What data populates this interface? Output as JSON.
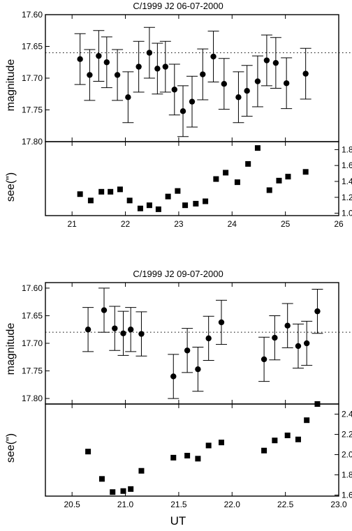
{
  "chart_data": [
    {
      "type": "scatter",
      "title": "C/1999 J2  06-07-2000",
      "ylabel": "magnitude",
      "ylim": [
        17.6,
        17.8
      ],
      "y_inverted": true,
      "yticks": [
        "17.60",
        "17.65",
        "17.70",
        "17.75",
        "17.80"
      ],
      "reference_line": 17.66,
      "series": [
        {
          "x": [
            21.15,
            21.33,
            21.5,
            21.65,
            21.85,
            22.05,
            22.25,
            22.45,
            22.6,
            22.75,
            22.92,
            23.08,
            23.25,
            23.45,
            23.65,
            23.85,
            24.12,
            24.28,
            24.48,
            24.65,
            24.82,
            25.02,
            25.38
          ],
          "y": [
            17.67,
            17.695,
            17.665,
            17.675,
            17.695,
            17.73,
            17.682,
            17.66,
            17.685,
            17.682,
            17.718,
            17.752,
            17.737,
            17.694,
            17.666,
            17.709,
            17.73,
            17.72,
            17.705,
            17.672,
            17.676,
            17.708,
            17.693
          ],
          "yerr": [
            0.04,
            0.04,
            0.04,
            0.04,
            0.04,
            0.04,
            0.04,
            0.04,
            0.04,
            0.04,
            0.04,
            0.04,
            0.04,
            0.04,
            0.04,
            0.04,
            0.04,
            0.04,
            0.04,
            0.04,
            0.04,
            0.04,
            0.04
          ]
        }
      ]
    },
    {
      "type": "scatter",
      "ylabel": "see(\")",
      "xlim": [
        20.5,
        26
      ],
      "xticks": [
        "21",
        "22",
        "23",
        "24",
        "25",
        "26"
      ],
      "ylim": [
        0.97,
        1.9
      ],
      "yticks": [
        "1.0",
        "1.2",
        "1.4",
        "1.6",
        "1.8"
      ],
      "series": [
        {
          "x": [
            21.15,
            21.35,
            21.55,
            21.72,
            21.9,
            22.08,
            22.28,
            22.45,
            22.62,
            22.8,
            22.98,
            23.12,
            23.32,
            23.5,
            23.7,
            23.88,
            24.1,
            24.3,
            24.48,
            24.7,
            24.88,
            25.05,
            25.38
          ],
          "y": [
            1.24,
            1.16,
            1.27,
            1.27,
            1.3,
            1.16,
            1.06,
            1.1,
            1.05,
            1.21,
            1.28,
            1.1,
            1.12,
            1.15,
            1.43,
            1.51,
            1.39,
            1.62,
            1.82,
            1.29,
            1.41,
            1.46,
            1.52
          ]
        }
      ]
    },
    {
      "type": "scatter",
      "title": "C/1999 J2  09-07-2000",
      "ylabel": "magnitude",
      "ylim": [
        17.59,
        17.81
      ],
      "y_inverted": true,
      "yticks": [
        "17.60",
        "17.65",
        "17.70",
        "17.75",
        "17.80"
      ],
      "reference_line": 17.68,
      "series": [
        {
          "x": [
            20.65,
            20.8,
            20.9,
            20.98,
            21.05,
            21.15,
            21.45,
            21.58,
            21.68,
            21.78,
            21.9,
            22.3,
            22.4,
            22.52,
            22.62,
            22.7,
            22.8
          ],
          "y": [
            17.675,
            17.64,
            17.673,
            17.682,
            17.675,
            17.683,
            17.76,
            17.713,
            17.747,
            17.691,
            17.662,
            17.729,
            17.69,
            17.668,
            17.705,
            17.7,
            17.642
          ],
          "yerr": [
            0.04,
            0.04,
            0.04,
            0.04,
            0.04,
            0.04,
            0.04,
            0.04,
            0.04,
            0.04,
            0.04,
            0.04,
            0.04,
            0.04,
            0.04,
            0.04,
            0.04
          ]
        }
      ]
    },
    {
      "type": "scatter",
      "ylabel": "see(\")",
      "xlabel": "UT",
      "xlim": [
        20.25,
        23.0
      ],
      "xticks": [
        "20.5",
        "21.0",
        "21.5",
        "22.0",
        "22.5",
        "23.0"
      ],
      "ylim": [
        1.59,
        2.5
      ],
      "yticks": [
        "1.6",
        "1.8",
        "2.0",
        "2.2",
        "2.4"
      ],
      "series": [
        {
          "x": [
            20.65,
            20.78,
            20.88,
            20.98,
            21.05,
            21.15,
            21.45,
            21.58,
            21.68,
            21.78,
            21.9,
            22.3,
            22.4,
            22.52,
            22.62,
            22.7,
            22.8
          ],
          "y": [
            2.03,
            1.76,
            1.63,
            1.64,
            1.66,
            1.84,
            1.97,
            1.99,
            1.96,
            2.09,
            2.12,
            2.04,
            2.14,
            2.19,
            2.15,
            2.34,
            2.5
          ]
        }
      ]
    }
  ]
}
